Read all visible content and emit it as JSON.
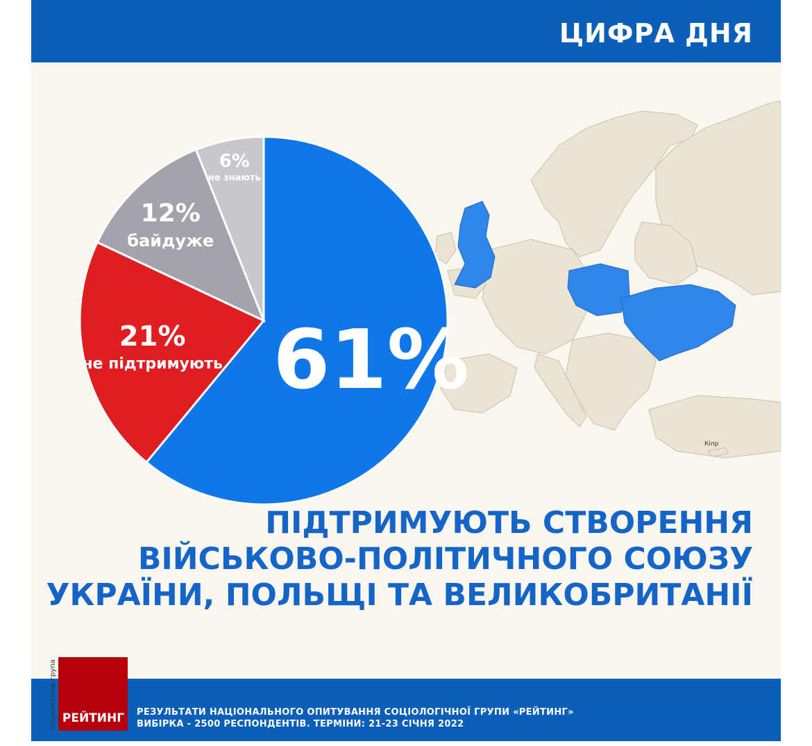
{
  "header": {
    "title": "ЦИФРА ДНЯ"
  },
  "headline": {
    "lines": [
      "ПІДТРИМУЮТЬ СТВОРЕННЯ",
      "ВІЙСЬКОВО-ПОЛІТИЧНОГО СОЮЗУ",
      "УКРАЇНИ, ПОЛЬЩІ ТА ВЕЛИКОБРИТАНІЇ"
    ]
  },
  "map": {
    "cyprus_label": "Кіпр",
    "highlight_color": "#2f86e8",
    "land_color": "#ece4d3"
  },
  "chart_data": {
    "type": "pie",
    "slices": [
      {
        "label": "",
        "value": 61,
        "value_label": "61%",
        "color": "#0f77ea"
      },
      {
        "label": "не підтримують",
        "value": 21,
        "value_label": "21%",
        "color": "#e01e22"
      },
      {
        "label": "байдуже",
        "value": 12,
        "value_label": "12%",
        "color": "#a4a2aa"
      },
      {
        "label": "не знають",
        "value": 6,
        "value_label": "6%",
        "color": "#c8c7cc"
      }
    ]
  },
  "footer": {
    "line1": "РЕЗУЛЬТАТИ НАЦІОНАЛЬНОГО ОПИТУВАННЯ СОЦІОЛОГІЧНОЇ ГРУПИ «РЕЙТИНГ»",
    "line2": "ВИБІРКА - 2500 РЕСПОНДЕНТІВ. ТЕРМІНИ: 21-23 СІЧНЯ 2022"
  },
  "logo": {
    "word": "РЕЙТИНГ",
    "vertical": "соціологічна група",
    "color": "#b5000c"
  }
}
